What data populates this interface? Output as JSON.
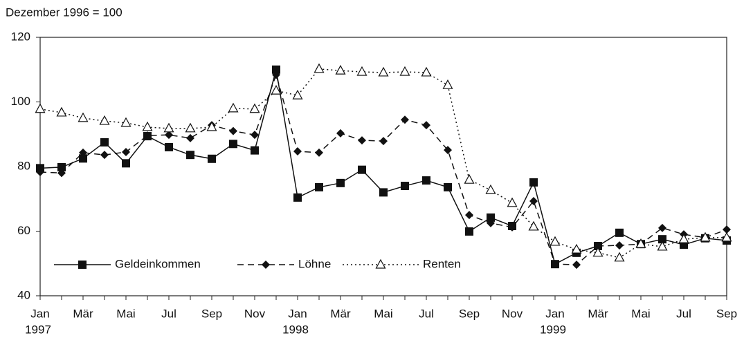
{
  "chart_data": {
    "type": "line",
    "subtitle": "Dezember 1996 = 100",
    "categories": [
      "Jan",
      null,
      "Mär",
      null,
      "Mai",
      null,
      "Jul",
      null,
      "Sep",
      null,
      "Nov",
      null,
      "Jan",
      null,
      "Mär",
      null,
      "Mai",
      null,
      "Jul",
      null,
      "Sep",
      null,
      "Nov",
      null,
      "Jan",
      null,
      "Mär",
      null,
      "Mai",
      null,
      "Jul",
      null,
      "Sep"
    ],
    "year_labels": [
      "1997",
      null,
      null,
      null,
      null,
      null,
      null,
      null,
      null,
      null,
      null,
      null,
      "1998",
      null,
      null,
      null,
      null,
      null,
      null,
      null,
      null,
      null,
      null,
      null,
      "1999",
      null,
      null,
      null,
      null,
      null,
      null,
      null,
      null
    ],
    "series": [
      {
        "name": "Geldeinkommen",
        "color": "#111111",
        "dash": "solid",
        "marker": "square",
        "values": [
          79.5,
          79.8,
          82.5,
          87.5,
          81,
          89.4,
          86,
          83.6,
          82.4,
          87,
          85,
          110,
          70.4,
          73.6,
          74.9,
          79,
          72,
          74,
          75.7,
          73.6,
          59.9,
          64.2,
          61.6,
          75.1,
          49.8,
          53.3,
          55.4,
          59.5,
          56,
          57.5,
          55.8,
          57.8,
          57.1
        ]
      },
      {
        "name": "Löhne",
        "color": "#111111",
        "dash": "dashed",
        "marker": "diamond",
        "values": [
          78.3,
          78,
          84.3,
          83.6,
          84.5,
          89.6,
          89.8,
          88.8,
          92.8,
          91,
          89.8,
          108.4,
          84.7,
          84.3,
          90.3,
          88.1,
          87.9,
          94.5,
          92.8,
          85.1,
          65,
          62.5,
          61.2,
          69.3,
          49.8,
          49.6,
          55.4,
          55.6,
          56,
          61,
          59,
          58,
          60.5
        ]
      },
      {
        "name": "Renten",
        "color": "#111111",
        "dash": "dotted",
        "marker": "triangle",
        "values": [
          97.8,
          96.7,
          95,
          94.1,
          93.5,
          92.2,
          91.8,
          91.8,
          92.2,
          98,
          97.8,
          103.5,
          102,
          110.2,
          109.7,
          109.3,
          109.1,
          109.3,
          109.1,
          105.2,
          75.9,
          72.7,
          68.7,
          61.4,
          56.7,
          54.3,
          53.3,
          51.8,
          56,
          55.2,
          57.5,
          58,
          58
        ]
      }
    ],
    "ylim": [
      40,
      120
    ],
    "yticks": [
      40,
      60,
      80,
      100,
      120
    ],
    "grid": false
  }
}
